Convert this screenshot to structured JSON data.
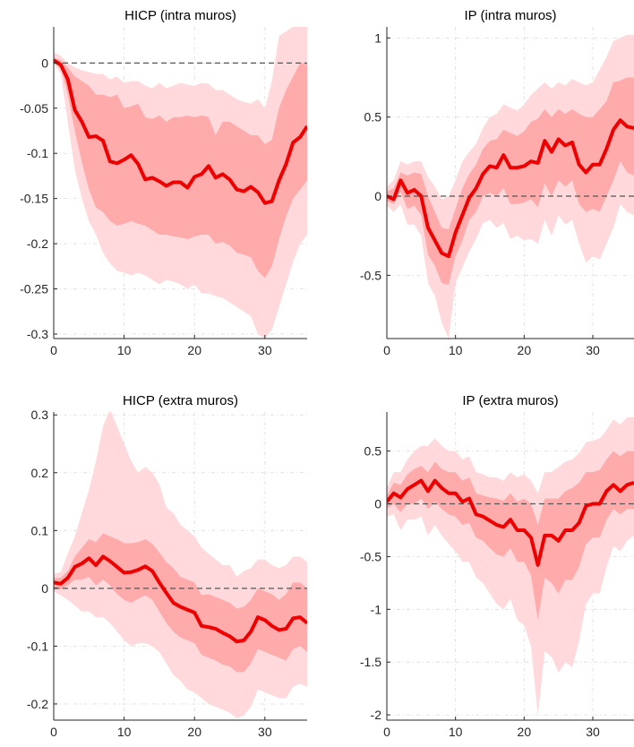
{
  "colors": {
    "outer_band": "#ffd9db",
    "inner_band": "#ffabab",
    "median": "#ee0000",
    "zero_line": "#555555",
    "grid": "#dcdcdc",
    "axes": "#262626"
  },
  "chart_data": [
    {
      "type": "area",
      "title": "HICP (intra muros)",
      "xlabel": "",
      "ylabel": "",
      "xlim": [
        0,
        36
      ],
      "ylim": [
        -0.305,
        0.04
      ],
      "xticks": [
        0,
        10,
        20,
        30
      ],
      "yticks": [
        0,
        -0.05,
        -0.1,
        -0.15,
        -0.2,
        -0.25,
        -0.3
      ],
      "grid": true,
      "x": [
        0,
        1,
        2,
        3,
        4,
        5,
        6,
        7,
        8,
        9,
        10,
        11,
        12,
        13,
        14,
        15,
        16,
        17,
        18,
        19,
        20,
        21,
        22,
        23,
        24,
        25,
        26,
        27,
        28,
        29,
        30,
        31,
        32,
        33,
        34,
        35,
        36
      ],
      "series": [
        {
          "values": [
            0.003,
            -0.002,
            -0.018,
            -0.052,
            -0.065,
            -0.082,
            -0.081,
            -0.086,
            -0.109,
            -0.111,
            -0.107,
            -0.102,
            -0.112,
            -0.129,
            -0.127,
            -0.131,
            -0.136,
            -0.132,
            -0.132,
            -0.138,
            -0.126,
            -0.123,
            -0.114,
            -0.127,
            -0.123,
            -0.129,
            -0.14,
            -0.142,
            -0.137,
            -0.143,
            -0.155,
            -0.153,
            -0.13,
            -0.112,
            -0.088,
            -0.082,
            -0.07
          ]
        },
        {
          "values": [
            0.006,
            0.003,
            -0.005,
            -0.015,
            -0.02,
            -0.025,
            -0.035,
            -0.035,
            -0.038,
            -0.035,
            -0.05,
            -0.048,
            -0.045,
            -0.06,
            -0.062,
            -0.058,
            -0.065,
            -0.06,
            -0.06,
            -0.058,
            -0.06,
            -0.058,
            -0.06,
            -0.08,
            -0.065,
            -0.065,
            -0.07,
            -0.075,
            -0.08,
            -0.08,
            -0.09,
            -0.085,
            -0.05,
            -0.03,
            -0.015,
            0.0,
            0.0
          ]
        },
        {
          "values": [
            0.0,
            -0.006,
            -0.035,
            -0.075,
            -0.11,
            -0.14,
            -0.16,
            -0.165,
            -0.175,
            -0.18,
            -0.178,
            -0.175,
            -0.178,
            -0.18,
            -0.185,
            -0.19,
            -0.19,
            -0.192,
            -0.193,
            -0.195,
            -0.192,
            -0.19,
            -0.19,
            -0.2,
            -0.198,
            -0.202,
            -0.21,
            -0.212,
            -0.215,
            -0.23,
            -0.238,
            -0.225,
            -0.195,
            -0.17,
            -0.15,
            -0.14,
            -0.13
          ]
        },
        {
          "values": [
            0.012,
            0.008,
            0.0,
            -0.005,
            -0.008,
            -0.01,
            -0.012,
            -0.012,
            -0.018,
            -0.015,
            -0.022,
            -0.02,
            -0.02,
            -0.025,
            -0.028,
            -0.022,
            -0.028,
            -0.025,
            -0.022,
            -0.024,
            -0.025,
            -0.022,
            -0.023,
            -0.03,
            -0.03,
            -0.035,
            -0.04,
            -0.043,
            -0.045,
            -0.04,
            -0.05,
            -0.02,
            0.03,
            0.035,
            0.04,
            0.04,
            0.04
          ]
        },
        {
          "values": [
            0.0,
            -0.012,
            -0.065,
            -0.118,
            -0.15,
            -0.175,
            -0.19,
            -0.21,
            -0.222,
            -0.23,
            -0.232,
            -0.235,
            -0.232,
            -0.235,
            -0.24,
            -0.245,
            -0.24,
            -0.242,
            -0.245,
            -0.25,
            -0.245,
            -0.255,
            -0.255,
            -0.258,
            -0.26,
            -0.265,
            -0.27,
            -0.275,
            -0.28,
            -0.3,
            -0.305,
            -0.295,
            -0.27,
            -0.245,
            -0.22,
            -0.2,
            -0.19
          ]
        }
      ]
    },
    {
      "type": "area",
      "title": "IP (intra muros)",
      "xlabel": "",
      "ylabel": "",
      "xlim": [
        0,
        36
      ],
      "ylim": [
        -0.9,
        1.07
      ],
      "xticks": [
        0,
        10,
        20,
        30
      ],
      "yticks": [
        1,
        0.5,
        0,
        -0.5
      ],
      "grid": true,
      "x": [
        0,
        1,
        2,
        3,
        4,
        5,
        6,
        7,
        8,
        9,
        10,
        11,
        12,
        13,
        14,
        15,
        16,
        17,
        18,
        19,
        20,
        21,
        22,
        23,
        24,
        25,
        26,
        27,
        28,
        29,
        30,
        31,
        32,
        33,
        34,
        35,
        36
      ],
      "series": [
        {
          "values": [
            0.0,
            -0.02,
            0.1,
            0.02,
            0.04,
            0.0,
            -0.2,
            -0.28,
            -0.36,
            -0.38,
            -0.23,
            -0.12,
            -0.01,
            0.05,
            0.14,
            0.19,
            0.18,
            0.26,
            0.18,
            0.18,
            0.19,
            0.22,
            0.21,
            0.35,
            0.28,
            0.36,
            0.32,
            0.34,
            0.2,
            0.15,
            0.2,
            0.2,
            0.3,
            0.42,
            0.48,
            0.44,
            0.43
          ]
        },
        {
          "values": [
            0.03,
            0.05,
            0.15,
            0.13,
            0.15,
            0.14,
            0.0,
            -0.1,
            -0.2,
            -0.21,
            -0.08,
            0.05,
            0.14,
            0.2,
            0.3,
            0.35,
            0.36,
            0.42,
            0.4,
            0.38,
            0.41,
            0.47,
            0.49,
            0.55,
            0.5,
            0.55,
            0.52,
            0.55,
            0.52,
            0.5,
            0.5,
            0.55,
            0.6,
            0.72,
            0.73,
            0.75,
            0.75
          ]
        },
        {
          "values": [
            -0.03,
            -0.05,
            0.03,
            -0.08,
            -0.06,
            -0.12,
            -0.37,
            -0.44,
            -0.55,
            -0.56,
            -0.38,
            -0.28,
            -0.15,
            -0.1,
            0.0,
            0.02,
            0.0,
            0.05,
            -0.05,
            -0.05,
            -0.04,
            -0.02,
            -0.07,
            0.08,
            0.0,
            0.1,
            0.06,
            0.1,
            -0.05,
            -0.1,
            -0.08,
            -0.1,
            0.0,
            0.1,
            0.22,
            0.15,
            0.13
          ]
        },
        {
          "values": [
            0.06,
            0.1,
            0.22,
            0.2,
            0.22,
            0.22,
            0.12,
            0.06,
            -0.02,
            0.0,
            0.1,
            0.22,
            0.28,
            0.33,
            0.43,
            0.5,
            0.52,
            0.58,
            0.56,
            0.54,
            0.58,
            0.64,
            0.68,
            0.72,
            0.68,
            0.72,
            0.7,
            0.74,
            0.72,
            0.7,
            0.72,
            0.8,
            0.88,
            0.98,
            1.0,
            1.02,
            1.02
          ]
        },
        {
          "values": [
            -0.06,
            -0.1,
            -0.05,
            -0.18,
            -0.18,
            -0.25,
            -0.55,
            -0.63,
            -0.8,
            -0.9,
            -0.55,
            -0.45,
            -0.35,
            -0.27,
            -0.17,
            -0.15,
            -0.2,
            -0.17,
            -0.27,
            -0.25,
            -0.28,
            -0.27,
            -0.3,
            -0.15,
            -0.25,
            -0.12,
            -0.18,
            -0.15,
            -0.3,
            -0.42,
            -0.38,
            -0.4,
            -0.3,
            -0.2,
            -0.05,
            -0.1,
            -0.12
          ]
        }
      ]
    },
    {
      "type": "area",
      "title": "HICP (extra muros)",
      "xlabel": "",
      "ylabel": "",
      "xlim": [
        0,
        36
      ],
      "ylim": [
        -0.228,
        0.305
      ],
      "xticks": [
        0,
        10,
        20,
        30
      ],
      "yticks": [
        0.3,
        0.2,
        0.1,
        0,
        -0.1,
        -0.2
      ],
      "grid": true,
      "x": [
        0,
        1,
        2,
        3,
        4,
        5,
        6,
        7,
        8,
        9,
        10,
        11,
        12,
        13,
        14,
        15,
        16,
        17,
        18,
        19,
        20,
        21,
        22,
        23,
        24,
        25,
        26,
        27,
        28,
        29,
        30,
        31,
        32,
        33,
        34,
        35,
        36
      ],
      "series": [
        {
          "values": [
            0.01,
            0.008,
            0.018,
            0.037,
            0.043,
            0.052,
            0.04,
            0.055,
            0.047,
            0.037,
            0.027,
            0.028,
            0.032,
            0.038,
            0.03,
            0.01,
            -0.008,
            -0.025,
            -0.032,
            -0.037,
            -0.042,
            -0.065,
            -0.067,
            -0.07,
            -0.077,
            -0.083,
            -0.092,
            -0.09,
            -0.075,
            -0.05,
            -0.055,
            -0.065,
            -0.072,
            -0.07,
            -0.052,
            -0.05,
            -0.06
          ]
        },
        {
          "values": [
            0.018,
            0.018,
            0.03,
            0.055,
            0.07,
            0.085,
            0.08,
            0.095,
            0.09,
            0.085,
            0.078,
            0.078,
            0.08,
            0.085,
            0.077,
            0.062,
            0.045,
            0.035,
            0.02,
            0.015,
            0.01,
            -0.012,
            -0.01,
            -0.015,
            -0.02,
            -0.025,
            -0.035,
            -0.032,
            -0.02,
            0.0,
            -0.005,
            -0.01,
            -0.02,
            -0.01,
            0.01,
            0.01,
            0.0
          ]
        },
        {
          "values": [
            0.0,
            -0.002,
            0.005,
            0.015,
            0.015,
            0.02,
            0.005,
            0.015,
            0.005,
            -0.01,
            -0.02,
            -0.025,
            -0.018,
            -0.012,
            -0.02,
            -0.04,
            -0.06,
            -0.075,
            -0.085,
            -0.09,
            -0.095,
            -0.115,
            -0.12,
            -0.125,
            -0.132,
            -0.135,
            -0.145,
            -0.145,
            -0.13,
            -0.105,
            -0.11,
            -0.115,
            -0.12,
            -0.125,
            -0.105,
            -0.1,
            -0.11
          ]
        },
        {
          "values": [
            0.025,
            0.028,
            0.06,
            0.09,
            0.13,
            0.17,
            0.22,
            0.28,
            0.31,
            0.28,
            0.25,
            0.22,
            0.2,
            0.21,
            0.2,
            0.18,
            0.14,
            0.13,
            0.11,
            0.1,
            0.09,
            0.07,
            0.06,
            0.05,
            0.04,
            0.04,
            0.02,
            0.03,
            0.035,
            0.05,
            0.05,
            0.04,
            0.035,
            0.04,
            0.055,
            0.055,
            0.045
          ]
        },
        {
          "values": [
            -0.005,
            -0.012,
            -0.02,
            -0.03,
            -0.04,
            -0.04,
            -0.05,
            -0.05,
            -0.06,
            -0.075,
            -0.09,
            -0.1,
            -0.095,
            -0.095,
            -0.1,
            -0.11,
            -0.13,
            -0.15,
            -0.16,
            -0.175,
            -0.18,
            -0.19,
            -0.2,
            -0.205,
            -0.21,
            -0.215,
            -0.225,
            -0.22,
            -0.205,
            -0.175,
            -0.18,
            -0.185,
            -0.19,
            -0.19,
            -0.17,
            -0.165,
            -0.17
          ]
        }
      ]
    },
    {
      "type": "area",
      "title": "IP (extra muros)",
      "xlabel": "",
      "ylabel": "",
      "xlim": [
        0,
        36
      ],
      "ylim": [
        -2.05,
        0.87
      ],
      "xticks": [
        0,
        10,
        20,
        30
      ],
      "yticks": [
        0.5,
        0,
        -0.5,
        -1,
        -1.5,
        -2
      ],
      "grid": true,
      "x": [
        0,
        1,
        2,
        3,
        4,
        5,
        6,
        7,
        8,
        9,
        10,
        11,
        12,
        13,
        14,
        15,
        16,
        17,
        18,
        19,
        20,
        21,
        22,
        23,
        24,
        25,
        26,
        27,
        28,
        29,
        30,
        31,
        32,
        33,
        34,
        35,
        36
      ],
      "series": [
        {
          "values": [
            0.02,
            0.1,
            0.06,
            0.14,
            0.18,
            0.22,
            0.12,
            0.22,
            0.15,
            0.1,
            0.1,
            0.02,
            0.05,
            -0.1,
            -0.12,
            -0.16,
            -0.2,
            -0.22,
            -0.15,
            -0.25,
            -0.25,
            -0.32,
            -0.58,
            -0.3,
            -0.3,
            -0.35,
            -0.25,
            -0.25,
            -0.18,
            -0.02,
            0.0,
            0.0,
            0.12,
            0.18,
            0.12,
            0.18,
            0.2
          ]
        },
        {
          "values": [
            0.08,
            0.2,
            0.18,
            0.28,
            0.33,
            0.36,
            0.3,
            0.4,
            0.33,
            0.3,
            0.3,
            0.22,
            0.25,
            0.1,
            0.08,
            0.06,
            0.05,
            0.03,
            0.1,
            0.02,
            0.05,
            0.0,
            -0.2,
            0.05,
            0.05,
            0.05,
            0.12,
            0.15,
            0.2,
            0.3,
            0.3,
            0.32,
            0.42,
            0.5,
            0.45,
            0.5,
            0.5
          ]
        },
        {
          "values": [
            -0.05,
            0.0,
            -0.08,
            0.0,
            0.0,
            0.05,
            -0.05,
            0.02,
            -0.05,
            -0.1,
            -0.12,
            -0.2,
            -0.18,
            -0.32,
            -0.35,
            -0.42,
            -0.48,
            -0.5,
            -0.42,
            -0.55,
            -0.55,
            -0.68,
            -1.1,
            -0.7,
            -0.75,
            -0.85,
            -0.72,
            -0.72,
            -0.6,
            -0.38,
            -0.32,
            -0.32,
            -0.15,
            -0.05,
            -0.1,
            -0.05,
            -0.05
          ]
        },
        {
          "values": [
            0.15,
            0.3,
            0.3,
            0.42,
            0.5,
            0.55,
            0.55,
            0.62,
            0.55,
            0.5,
            0.5,
            0.42,
            0.45,
            0.3,
            0.28,
            0.25,
            0.25,
            0.22,
            0.3,
            0.25,
            0.28,
            0.22,
            0.1,
            0.3,
            0.3,
            0.35,
            0.4,
            0.42,
            0.48,
            0.58,
            0.6,
            0.62,
            0.7,
            0.8,
            0.75,
            0.82,
            0.82
          ]
        },
        {
          "values": [
            -0.12,
            -0.1,
            -0.25,
            -0.15,
            -0.15,
            -0.12,
            -0.3,
            -0.2,
            -0.3,
            -0.38,
            -0.45,
            -0.55,
            -0.55,
            -0.7,
            -0.75,
            -0.85,
            -0.95,
            -1.0,
            -0.9,
            -1.1,
            -1.15,
            -1.35,
            -2.0,
            -1.4,
            -1.45,
            -1.6,
            -1.5,
            -1.55,
            -1.3,
            -0.95,
            -0.85,
            -0.85,
            -0.6,
            -0.4,
            -0.45,
            -0.35,
            -0.3
          ]
        }
      ]
    }
  ]
}
